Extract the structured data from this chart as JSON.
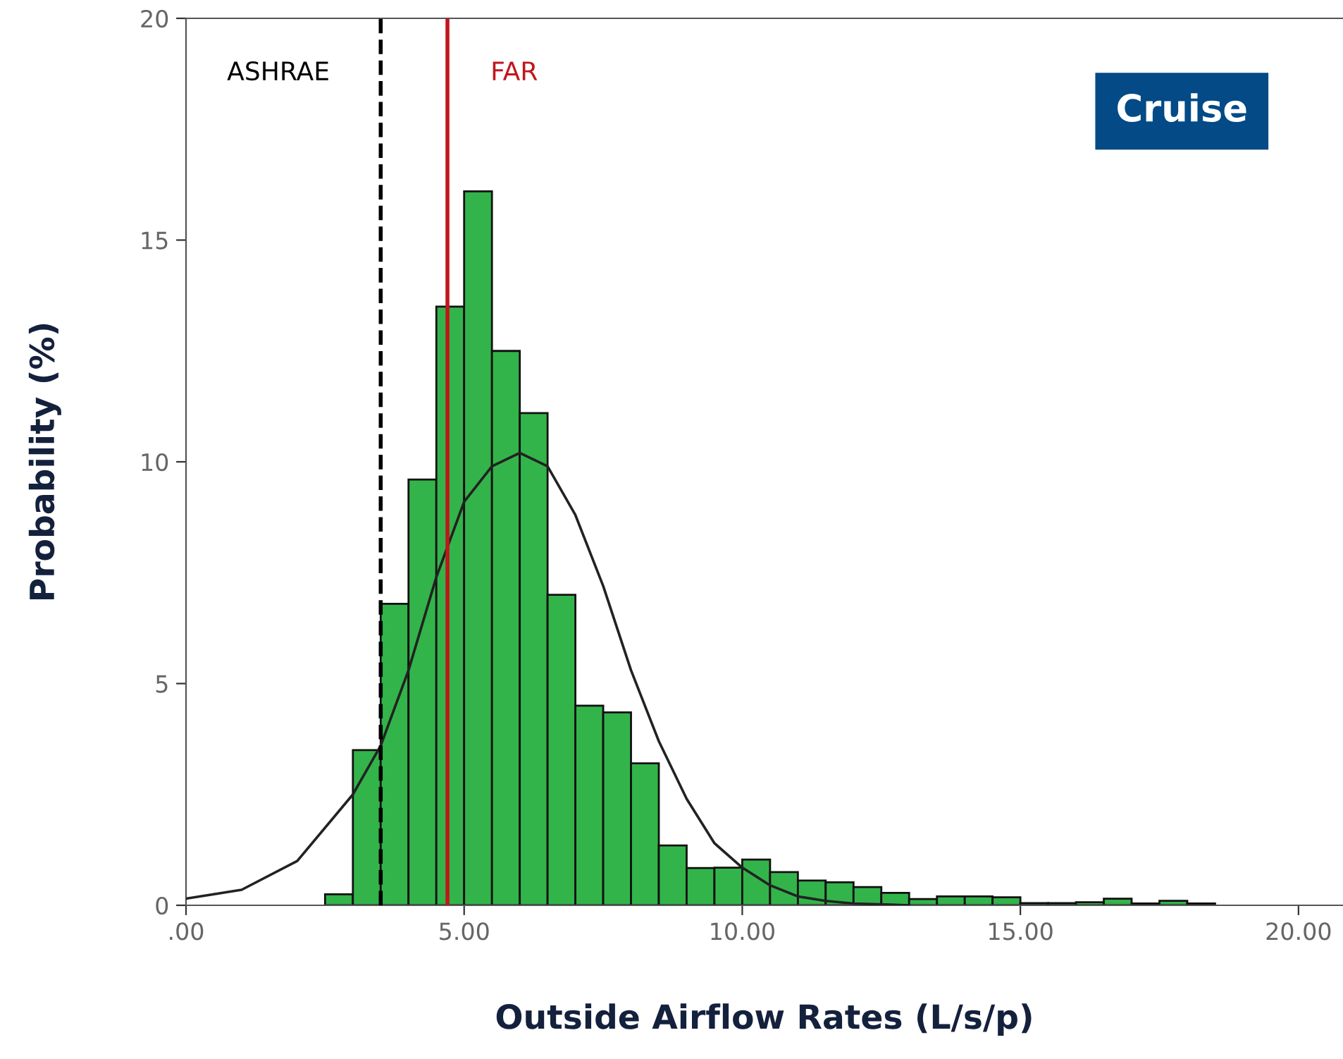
{
  "chart_data": {
    "type": "histogram",
    "title": "Cruise",
    "xlabel": "Outside Airflow Rates (L/s/p)",
    "ylabel": "Probability (%)",
    "xlim": [
      0,
      20.8
    ],
    "ylim": [
      0,
      20
    ],
    "xticks": [
      {
        "value": 0,
        "label": ".00"
      },
      {
        "value": 5,
        "label": "5.00"
      },
      {
        "value": 10,
        "label": "10.00"
      },
      {
        "value": 15,
        "label": "15.00"
      },
      {
        "value": 20,
        "label": "20.00"
      }
    ],
    "yticks": [
      0,
      5,
      10,
      15,
      20
    ],
    "grid": false,
    "legend": false,
    "series": [
      {
        "color": "#33b44a",
        "bins": [
          2.5,
          3,
          3.5,
          4,
          4.5,
          5,
          5.5,
          6,
          6.5,
          7,
          7.5,
          8,
          8.5,
          9,
          9.5,
          10,
          10.5,
          11,
          11.5,
          12,
          12.5,
          13,
          13.5,
          14,
          14.5,
          15,
          15.5,
          16,
          16.5,
          17,
          17.5,
          18,
          18.5
        ],
        "values": [
          0.25,
          3.5,
          6.8,
          9.6,
          13.5,
          16.1,
          12.5,
          11.1,
          7.0,
          4.5,
          4.35,
          3.2,
          1.35,
          0.84,
          0.85,
          1.03,
          0.75,
          0.56,
          0.52,
          0.41,
          0.28,
          0.14,
          0.2,
          0.2,
          0.18,
          0.05,
          0.05,
          0.07,
          0.15,
          0.04,
          0.1,
          0.04
        ]
      },
      {
        "type": "line",
        "color": "#222222",
        "x": [
          0,
          1,
          2,
          3,
          3.5,
          4,
          4.5,
          5,
          5.5,
          6,
          6.5,
          7,
          7.5,
          8,
          8.5,
          9,
          9.5,
          10,
          10.5,
          11,
          11.5,
          12,
          13
        ],
        "values": [
          0.15,
          0.35,
          1.0,
          2.5,
          3.6,
          5.3,
          7.4,
          9.1,
          9.9,
          10.2,
          9.9,
          8.8,
          7.2,
          5.3,
          3.7,
          2.4,
          1.4,
          0.85,
          0.45,
          0.2,
          0.1,
          0.04,
          0
        ]
      }
    ],
    "ref_lines": [
      {
        "axis": "x",
        "value": 3.5,
        "label": "ASHRAE",
        "color": "#000000",
        "line_style": "dashed"
      },
      {
        "axis": "x",
        "value": 4.7,
        "label": "FAR",
        "color": "#c0171d",
        "line_style": "solid"
      }
    ]
  }
}
